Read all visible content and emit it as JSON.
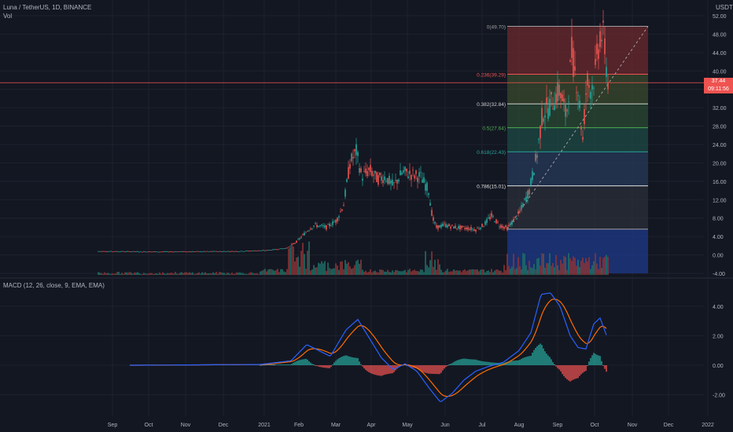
{
  "header": {
    "title": "Luna / TetherUS, 1D, BINANCE",
    "vol_label": "Vol",
    "currency": "USDT"
  },
  "colors": {
    "bg": "#131722",
    "up": "#26a69a",
    "down": "#ef5350",
    "grid": "#1e222d",
    "text": "#b2b5be",
    "macd": "#2962ff",
    "signal": "#ff6d00"
  },
  "price_axis": {
    "ticks": [
      "52.00",
      "48.00",
      "44.00",
      "40.00",
      "36.00",
      "32.00",
      "28.00",
      "24.00",
      "20.00",
      "16.00",
      "12.00",
      "8.00",
      "4.00",
      "0.00",
      "-4.00"
    ],
    "current_price": "37.44",
    "countdown": "09:11:56"
  },
  "macd": {
    "label": "MACD (12, 26, close, 9, EMA, EMA)",
    "ticks": [
      "4.00",
      "2.00",
      "0.00",
      "-2.00"
    ]
  },
  "time_axis": [
    "Sep",
    "Oct",
    "Nov",
    "Dec",
    "2021",
    "Feb",
    "Mar",
    "Apr",
    "May",
    "Jun",
    "Jul",
    "Aug",
    "Sep",
    "Oct",
    "Nov",
    "Dec",
    "2022"
  ],
  "fib": {
    "levels": [
      {
        "label": "0(49.70)",
        "value": 49.7,
        "color": "#9e9e9e"
      },
      {
        "label": "0.236(39.29)",
        "value": 39.29,
        "color": "#ef5350"
      },
      {
        "label": "0.382(32.84)",
        "value": 32.84,
        "color": "#cfcfcf"
      },
      {
        "label": "0.5(27.64)",
        "value": 27.64,
        "color": "#4caf50"
      },
      {
        "label": "0.618(22.43)",
        "value": 22.43,
        "color": "#26a69a"
      },
      {
        "label": "0.786(15.01)",
        "value": 15.01,
        "color": "#e0e0e0"
      },
      {
        "label": "",
        "value": 5.6,
        "color": "#9e9e9e"
      }
    ]
  },
  "chart_data": {
    "type": "line",
    "series": [
      {
        "values": [
          [
            2020.65,
            0.7
          ],
          [
            2020.9,
            0.6
          ],
          [
            2021.0,
            1.0
          ],
          [
            2021.08,
            3.0
          ],
          [
            2021.12,
            5.5
          ],
          [
            2021.16,
            6.5
          ],
          [
            2021.2,
            11.0
          ],
          [
            2021.22,
            22.0
          ],
          [
            2021.28,
            18.0
          ],
          [
            2021.33,
            16.0
          ],
          [
            2021.4,
            17.5
          ],
          [
            2021.45,
            8.0
          ],
          [
            2021.5,
            6.5
          ],
          [
            2021.55,
            5.5
          ],
          [
            2021.6,
            6.0
          ],
          [
            2021.65,
            8.0
          ],
          [
            2021.7,
            14.0
          ],
          [
            2021.75,
            24.0
          ],
          [
            2021.8,
            30.0
          ],
          [
            2021.84,
            27.0
          ],
          [
            2021.88,
            42.0
          ],
          [
            2021.92,
            25.0
          ],
          [
            2021.95,
            36.0
          ],
          [
            2021.99,
            49.7
          ],
          [
            2022.02,
            37.44
          ]
        ]
      }
    ]
  }
}
